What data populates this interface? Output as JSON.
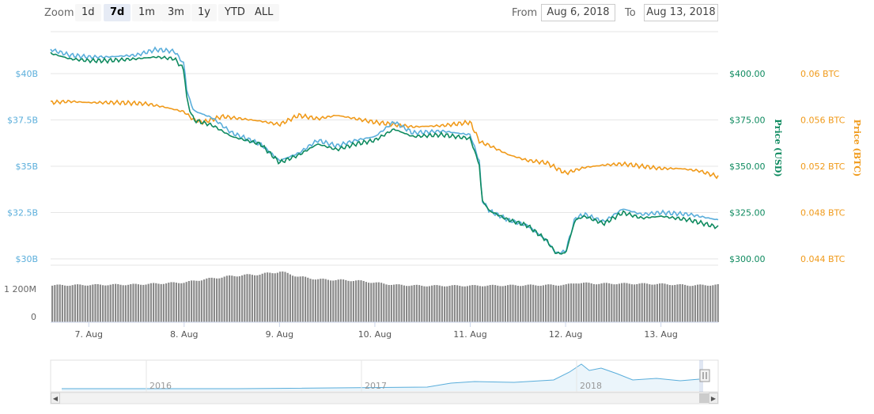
{
  "toolbar": {
    "zoom_label": "Zoom",
    "zoom_buttons": [
      "1d",
      "7d",
      "1m",
      "3m",
      "1y",
      "YTD",
      "ALL"
    ],
    "active_zoom": "7d",
    "from_label": "From",
    "from_value": "Aug 6, 2018",
    "to_label": "To",
    "to_value": "Aug 13, 2018"
  },
  "colors": {
    "market_cap": "#5aaedb",
    "price_usd": "#0e8a5f",
    "price_btc": "#f09a1a",
    "volume": "#8a8a8a",
    "navigator": "#5aaedb"
  },
  "chart_data": {
    "type": "line",
    "x_ticks": [
      "7. Aug",
      "8. Aug",
      "9. Aug",
      "10. Aug",
      "11. Aug",
      "12. Aug",
      "13. Aug"
    ],
    "x_range": [
      -0.4,
      6.6
    ],
    "axes": {
      "market_cap": {
        "ticks": [
          "$40B",
          "$37.5B",
          "$35B",
          "$32.5B",
          "$30B"
        ],
        "ylim": [
          30,
          40
        ]
      },
      "price_usd": {
        "title": "Price (USD)",
        "ticks": [
          "$400.00",
          "$375.00",
          "$350.00",
          "$325.00",
          "$300.00"
        ],
        "ylim": [
          300,
          400
        ]
      },
      "price_btc": {
        "title": "Price (BTC)",
        "ticks": [
          "0.06 BTC",
          "0.056 BTC",
          "0.052 BTC",
          "0.048 BTC",
          "0.044 BTC"
        ],
        "ylim": [
          0.044,
          0.06
        ]
      },
      "volume": {
        "ticks": [
          "1 200M",
          "0"
        ],
        "ylim": [
          0,
          1200
        ]
      }
    },
    "series": [
      {
        "key": "market_cap",
        "x": [
          -0.4,
          -0.2,
          0.0,
          0.2,
          0.5,
          0.7,
          0.9,
          1.0,
          1.03,
          1.1,
          1.3,
          1.5,
          1.8,
          2.0,
          2.2,
          2.4,
          2.6,
          2.8,
          3.0,
          3.2,
          3.4,
          3.7,
          4.0,
          4.1,
          4.12,
          4.2,
          4.4,
          4.6,
          4.8,
          4.9,
          5.0,
          5.1,
          5.2,
          5.4,
          5.6,
          5.8,
          6.0,
          6.3,
          6.6
        ],
        "values": [
          41.3,
          41.0,
          40.9,
          40.9,
          41.0,
          41.3,
          41.2,
          40.5,
          39.0,
          38.0,
          37.6,
          36.8,
          36.2,
          35.3,
          35.7,
          36.4,
          36.1,
          36.4,
          36.6,
          37.4,
          36.8,
          36.9,
          36.7,
          35.2,
          33.2,
          32.6,
          32.1,
          31.8,
          31.0,
          30.3,
          30.4,
          32.2,
          32.4,
          32.0,
          32.7,
          32.4,
          32.5,
          32.4,
          32.1
        ]
      },
      {
        "key": "price_usd",
        "x": [
          -0.4,
          -0.2,
          0.0,
          0.2,
          0.5,
          0.7,
          0.9,
          1.0,
          1.03,
          1.1,
          1.3,
          1.5,
          1.8,
          2.0,
          2.2,
          2.4,
          2.6,
          2.8,
          3.0,
          3.2,
          3.4,
          3.7,
          4.0,
          4.1,
          4.12,
          4.2,
          4.4,
          4.6,
          4.8,
          4.9,
          5.0,
          5.1,
          5.2,
          5.4,
          5.6,
          5.8,
          6.0,
          6.3,
          6.6
        ],
        "values": [
          411,
          408,
          407,
          407,
          408,
          409,
          408,
          402,
          385,
          375,
          372,
          366,
          362,
          352,
          356,
          362,
          359,
          362,
          364,
          370,
          366,
          367,
          365,
          350,
          332,
          326,
          321,
          318,
          310,
          303,
          303,
          321,
          323,
          319,
          325,
          322,
          323,
          321,
          317
        ]
      },
      {
        "key": "price_btc",
        "x": [
          -0.4,
          -0.2,
          0.0,
          0.3,
          0.6,
          0.8,
          1.0,
          1.1,
          1.2,
          1.4,
          1.6,
          1.8,
          2.0,
          2.2,
          2.4,
          2.6,
          2.8,
          3.0,
          3.2,
          3.4,
          3.7,
          4.0,
          4.1,
          4.2,
          4.4,
          4.6,
          4.8,
          5.0,
          5.2,
          5.4,
          5.6,
          5.8,
          6.0,
          6.2,
          6.4,
          6.6
        ],
        "values": [
          0.0575,
          0.0576,
          0.0575,
          0.0575,
          0.0574,
          0.0571,
          0.0567,
          0.056,
          0.0558,
          0.0563,
          0.0561,
          0.0559,
          0.0556,
          0.0564,
          0.0561,
          0.0564,
          0.0561,
          0.0558,
          0.0556,
          0.0554,
          0.0555,
          0.0558,
          0.0541,
          0.0538,
          0.053,
          0.0525,
          0.0523,
          0.0514,
          0.0519,
          0.0521,
          0.0522,
          0.052,
          0.0518,
          0.0518,
          0.0516,
          0.0511
        ]
      }
    ],
    "volume_series": {
      "x": [
        -0.4,
        0.0,
        0.5,
        1.0,
        1.2,
        1.5,
        1.8,
        2.0,
        2.2,
        2.4,
        2.8,
        3.0,
        3.2,
        3.5,
        4.0,
        4.5,
        5.0,
        5.1,
        5.3,
        5.6,
        6.0,
        6.3,
        6.6
      ],
      "values": [
        860,
        870,
        880,
        930,
        1000,
        1080,
        1120,
        1180,
        1060,
        1000,
        970,
        920,
        870,
        850,
        850,
        860,
        870,
        920,
        900,
        900,
        890,
        860,
        870
      ]
    },
    "navigator": {
      "labels": [
        "2016",
        "2017",
        "2018"
      ]
    }
  }
}
